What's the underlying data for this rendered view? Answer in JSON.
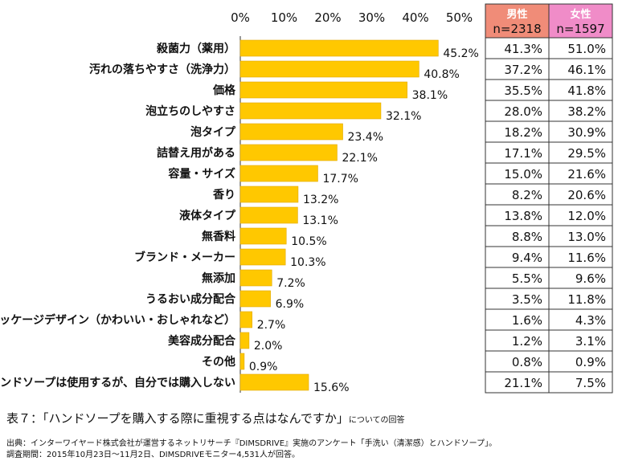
{
  "chart_data": {
    "type": "bar",
    "orientation": "horizontal",
    "xlim": [
      0,
      50
    ],
    "ticks": [
      "0%",
      "10%",
      "20%",
      "30%",
      "40%",
      "50%"
    ],
    "tick_values": [
      0,
      10,
      20,
      30,
      40,
      50
    ],
    "bar_color": "#ffc800",
    "categories": [
      "殺菌力（薬用）",
      "汚れの落ちやすさ（洗浄力）",
      "価格",
      "泡立ちのしやすさ",
      "泡タイプ",
      "詰替え用がある",
      "容量・サイズ",
      "香り",
      "液体タイプ",
      "無香料",
      "ブランド・メーカー",
      "無添加",
      "うるおい成分配合",
      "パッケージデザイン（かわいい・おしゃれなど）",
      "美容成分配合",
      "その他",
      "ハンドソープは使用するが、自分では購入しない"
    ],
    "values": [
      45.2,
      40.8,
      38.1,
      32.1,
      23.4,
      22.1,
      17.7,
      13.2,
      13.1,
      10.5,
      10.3,
      7.2,
      6.9,
      2.7,
      2.0,
      0.9,
      15.6
    ],
    "value_labels": [
      "45.2%",
      "40.8%",
      "38.1%",
      "32.1%",
      "23.4%",
      "22.1%",
      "17.7%",
      "13.2%",
      "13.1%",
      "10.5%",
      "10.3%",
      "7.2%",
      "6.9%",
      "2.7%",
      "2.0%",
      "0.9%",
      "15.6%"
    ],
    "table": {
      "columns": [
        {
          "title": "男性",
          "sub": "n=2318",
          "color": "#f08c78"
        },
        {
          "title": "女性",
          "sub": "n=1597",
          "color": "#f08cc8"
        }
      ],
      "male": [
        "41.3%",
        "37.2%",
        "35.5%",
        "28.0%",
        "18.2%",
        "17.1%",
        "15.0%",
        "8.2%",
        "13.8%",
        "8.8%",
        "9.4%",
        "5.5%",
        "3.5%",
        "1.6%",
        "1.2%",
        "0.8%",
        "21.1%"
      ],
      "female": [
        "51.0%",
        "46.1%",
        "41.8%",
        "38.2%",
        "30.9%",
        "29.5%",
        "21.6%",
        "20.6%",
        "12.0%",
        "13.0%",
        "11.6%",
        "9.6%",
        "11.8%",
        "4.3%",
        "3.1%",
        "0.9%",
        "7.5%"
      ]
    }
  },
  "caption": {
    "main": "表７：「ハンドソープを購入する際に重視する点はなんですか」",
    "suffix": "についての回答"
  },
  "source": {
    "line1": "出典：インターワイヤード株式会社が運営するネットリサーチ『DIMSDRIVE』実施のアンケート「手洗い（清潔感）とハンドソープ」。",
    "line2": "調査期間：2015年10月23日～11月2日、DIMSDRIVEモニター4,531人が回答。"
  }
}
